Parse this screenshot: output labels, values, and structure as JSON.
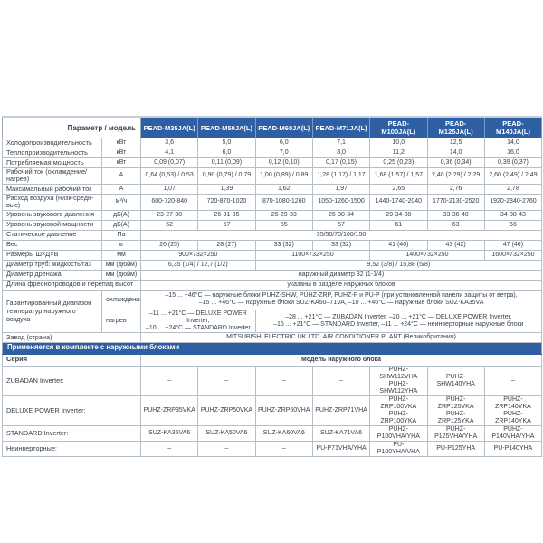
{
  "header": {
    "param_label": "Параметр / модель",
    "models": [
      "PEAD-M35JA(L)",
      "PEAD-M50JA(L)",
      "PEAD-M60JA(L)",
      "PEAD-M71JA(L)",
      "PEAD-M100JA(L)",
      "PEAD-M125JA(L)",
      "PEAD-M140JA(L)"
    ]
  },
  "colors": {
    "header_blue": "#2e5fa3",
    "band_blue": "#2e5fa3",
    "border_gray": "#b5bfc9",
    "text_dark": "#3a4046"
  },
  "spec_rows": [
    {
      "label": "Холодопроизводительность",
      "unit": "кВт",
      "values": [
        "3,6",
        "5,0",
        "6,0",
        "7,1",
        "10,0",
        "12,5",
        "14,0"
      ]
    },
    {
      "label": "Теплопроизводительность",
      "unit": "кВт",
      "values": [
        "4,1",
        "6,0",
        "7,0",
        "8,0",
        "11,2",
        "14,0",
        "16,0"
      ]
    },
    {
      "label": "Потребляемая мощность",
      "unit": "кВт",
      "values": [
        "0,09 (0,07)",
        "0,11 (0,09)",
        "0,12 (0,10)",
        "0,17 (0,15)",
        "0,25 (0,23)",
        "0,36 (0,34)",
        "0,39 (0,37)"
      ]
    },
    {
      "label": "Рабочий ток (охлаждение/нагрев)",
      "unit": "А",
      "values": [
        "0,64 (0,53) / 0,53",
        "0,90 (0,79) / 0,79",
        "1,00 (0,89) / 0,89",
        "1,28 (1,17) / 1,17",
        "1,68 (1,57) / 1,57",
        "2,40 (2,29) / 2,29",
        "2,60 (2,49) / 2,49"
      ]
    },
    {
      "label": "Максимальный рабочий ток",
      "unit": "А",
      "values": [
        "1,07",
        "1,39",
        "1,62",
        "1,97",
        "2,65",
        "2,76",
        "2,78"
      ]
    },
    {
      "label": "Расход воздуха (низк-средн-выс)",
      "unit": "м³/ч",
      "values": [
        "600-720-840",
        "720-870-1020",
        "870-1080-1260",
        "1050-1260-1500",
        "1440-1740-2040",
        "1770-2130-2520",
        "1920-2340-2760"
      ]
    },
    {
      "label": "Уровень звукового давления",
      "unit": "дБ(А)",
      "values": [
        "23-27-30",
        "26-31-35",
        "25-29-33",
        "26-30-34",
        "29-34-38",
        "33-36-40",
        "34-38-43"
      ]
    },
    {
      "label": "Уровень звуковой мощности",
      "unit": "дБ(А)",
      "values": [
        "52",
        "57",
        "55",
        "57",
        "61",
        "63",
        "66"
      ]
    },
    {
      "label": "Статическое давление",
      "unit": "Па",
      "cells": [
        {
          "text": "35/50/70/100/150",
          "span": 7
        }
      ]
    },
    {
      "label": "Вес",
      "unit": "кг",
      "values": [
        "26 (25)",
        "28 (27)",
        "33 (32)",
        "33 (32)",
        "41 (40)",
        "43 (42)",
        "47 (46)"
      ]
    },
    {
      "label": "Размеры Ш×Д×В",
      "unit": "мм",
      "cells": [
        {
          "text": "900×732×250",
          "span": 2
        },
        {
          "text": "1100×732×250",
          "span": 2
        },
        {
          "text": "1400×732×250",
          "span": 2
        },
        {
          "text": "1600×732×250",
          "span": 1
        }
      ]
    },
    {
      "label": "Диаметр труб: жидкость/газ",
      "unit": "мм (дюйм)",
      "cells": [
        {
          "text": "6,35 (1/4) / 12,7 (1/2)",
          "span": 2
        },
        {
          "text": "9,52 (3/8) / 15,88 (5/8)",
          "span": 5
        }
      ]
    },
    {
      "label": "Диаметр дренажа",
      "unit": "мм (дюйм)",
      "cells": [
        {
          "text": "наружный диаметр 32 (1-1/4)",
          "span": 7
        }
      ]
    },
    {
      "label": "Длина фреонопроводов и перепад высот",
      "label_span2": true,
      "cells": [
        {
          "text": "указаны в разделе наружных блоков",
          "span": 7
        }
      ]
    },
    {
      "group_label": "Гарантированный диапазон температур наружного воздуха",
      "group_rowspan": 2,
      "sub": "охлаждение",
      "tall": true,
      "cells": [
        {
          "text": "–15 ... +46°С — наружные блоки PUHZ-SHW,  PUHZ-ZRP, PUHZ-P и PU-P (при установленной панели защиты от ветра),\n–15 ... +46°С — наружные блоки SUZ-KA50–71VA, –10 ... +46°С — наружные блоки SUZ-KA35VA",
          "span": 7
        }
      ]
    },
    {
      "in_group": true,
      "sub": "нагрев",
      "tall": true,
      "cells": [
        {
          "text": "–11 ... +21°С — DELUXE POWER Inverter,\n–10 ... +24°С — STANDARD Inverter",
          "span": 2
        },
        {
          "text": "–28 ... +21°С — ZUBADAN Inverter, –20 ... +21°С — DELUXE POWER Inverter,\n–15 ... +21°С — STANDARD Inverter, –11 ... +24°С — неинверторные наружные блоки",
          "span": 5
        }
      ]
    },
    {
      "label": "Завод (страна)",
      "label_span2": true,
      "cells": [
        {
          "text": "MITSUBISHI ELECTRIC UK LTD. AIR CONDITIONER PLANT (Великобритания)",
          "span": 7
        }
      ]
    }
  ],
  "band": {
    "title": "Применяется в комплекте с наружными блоками"
  },
  "series_header": {
    "label": "Серия",
    "value": "Модель наружного блока"
  },
  "series_rows": [
    {
      "label": "ZUBADAN Inverter:",
      "tall": true,
      "values": [
        "–",
        "–",
        "–",
        "–",
        "PUHZ-SHW112VHA\nPUHZ-SHW112YHA",
        "PUHZ-SHW140YHA",
        "–"
      ]
    },
    {
      "label": "DELUXE POWER Inverter:",
      "tall": true,
      "values": [
        "PUHZ-ZRP35VKA",
        "PUHZ-ZRP50VKA",
        "PUHZ-ZRP60VHA",
        "PUHZ-ZRP71VHA",
        "PUHZ-ZRP100VKA\nPUHZ-ZRP100YKA",
        "PUHZ-ZRP125VKA\nPUHZ-ZRP125YKA",
        "PUHZ-ZRP140VKA\nPUHZ-ZRP140YKA"
      ]
    },
    {
      "label": "STANDARD Inverter:",
      "values": [
        "SUZ-KA35VA6",
        "SUZ-KA50VA6",
        "SUZ-KA60VA6",
        "SUZ-KA71VA6",
        "PUHZ-P100VHA/YHA",
        "PUHZ-P125VHA/YHA",
        "PUHZ-P140VHA/YHA"
      ]
    },
    {
      "label": "Неинверторные:",
      "values": [
        "–",
        "–",
        "–",
        "PU-P71VHA/YHA",
        "PU-P100YHA/VHA",
        "PU-P125YHA",
        "PU-P140YHA"
      ]
    }
  ]
}
